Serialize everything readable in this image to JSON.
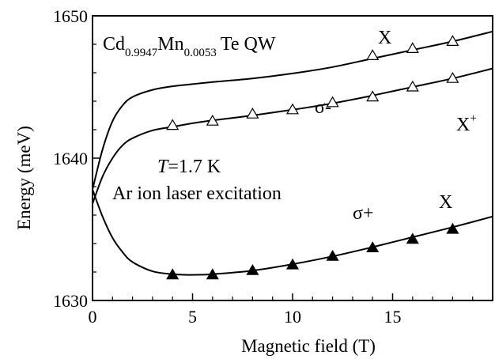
{
  "chart_data": {
    "type": "scatter",
    "title": "",
    "xlabel": "Magnetic field (T)",
    "ylabel": "Energy (meV)",
    "xlim": [
      0,
      20
    ],
    "ylim": [
      1630,
      1650
    ],
    "x_ticks": [
      0,
      5,
      10,
      15
    ],
    "y_ticks": [
      1630,
      1640,
      1650
    ],
    "x_tick_labels": [
      "0",
      "5",
      "10",
      "15"
    ],
    "y_tick_labels": [
      "1630",
      "1640",
      "1650"
    ],
    "grid": false,
    "annotations": {
      "sample": {
        "base1": "Cd",
        "sub1": "0.9947",
        "base2": "Mn",
        "sub2": "0.0053",
        "rest": "Te QW"
      },
      "temperature": {
        "var": "T",
        "rest": "=1.7 K"
      },
      "excitation": "Ar ion laser excitation",
      "sigma_minus": "σ-",
      "sigma_plus": "σ+",
      "x_upper": "X",
      "x_lower": "X",
      "trion": {
        "base": "X",
        "sup": "+"
      }
    },
    "series": [
      {
        "marker": "open-triangle",
        "x": [
          4,
          6,
          8,
          10,
          12,
          14,
          16,
          18
        ],
        "y": [
          1642.3,
          1642.6,
          1643.1,
          1643.4,
          1643.9,
          1644.3,
          1645.0,
          1645.6
        ]
      },
      {
        "marker": "open-triangle",
        "x": [
          14,
          16,
          18
        ],
        "y": [
          1647.2,
          1647.7,
          1648.2
        ]
      },
      {
        "marker": "filled-triangle",
        "x": [
          4,
          6,
          8,
          10,
          12,
          14,
          16,
          18
        ],
        "y": [
          1631.8,
          1631.8,
          1632.1,
          1632.5,
          1633.1,
          1633.7,
          1634.3,
          1635.0
        ]
      },
      {
        "marker": "line",
        "x": [
          0,
          0.5,
          1,
          1.5,
          2,
          3,
          4,
          5,
          6,
          8,
          10,
          12,
          14,
          16,
          18,
          20
        ],
        "y": [
          1637.8,
          1640.6,
          1642.6,
          1643.7,
          1644.3,
          1644.8,
          1645.05,
          1645.2,
          1645.35,
          1645.6,
          1645.95,
          1646.4,
          1647.0,
          1647.6,
          1648.2,
          1648.9
        ]
      },
      {
        "marker": "line",
        "x": [
          0,
          0.5,
          1,
          1.5,
          2,
          3,
          4,
          5,
          6,
          8,
          10,
          12,
          14,
          16,
          18,
          20
        ],
        "y": [
          1636.8,
          1638.7,
          1640.0,
          1640.9,
          1641.4,
          1641.95,
          1642.2,
          1642.45,
          1642.65,
          1643.0,
          1643.4,
          1643.85,
          1644.4,
          1645.0,
          1645.6,
          1646.3
        ]
      },
      {
        "marker": "line",
        "x": [
          0,
          0.5,
          1,
          1.5,
          2,
          3,
          4,
          5,
          6,
          8,
          10,
          12,
          14,
          16,
          18,
          20
        ],
        "y": [
          1637.8,
          1635.9,
          1634.4,
          1633.4,
          1632.7,
          1632.05,
          1631.85,
          1631.8,
          1631.85,
          1632.1,
          1632.55,
          1633.1,
          1633.75,
          1634.45,
          1635.15,
          1635.9
        ]
      }
    ]
  }
}
